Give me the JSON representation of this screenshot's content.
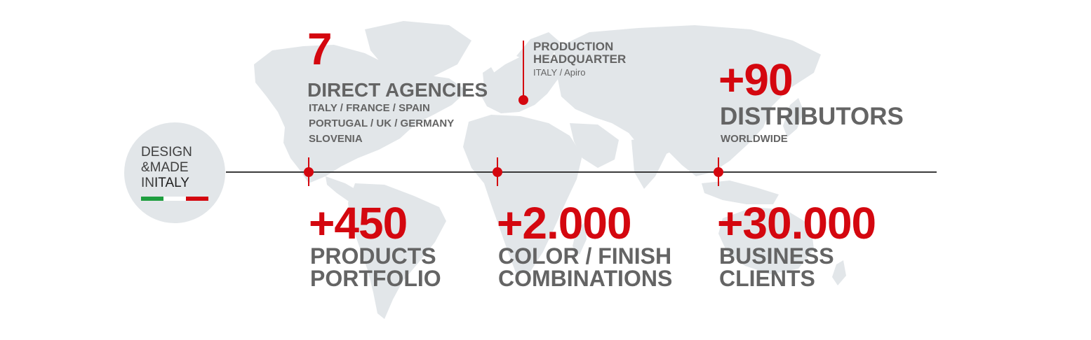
{
  "badge": {
    "line1": "DESIGN",
    "line2": "&MADE",
    "line3a": "IN",
    "line3b": "ITALY",
    "flag_colors": [
      "#1e9e3f",
      "#ffffff",
      "#d4070f"
    ]
  },
  "agencies": {
    "value": "7",
    "title": "DIRECT AGENCIES",
    "countries_line1": "ITALY / FRANCE / SPAIN",
    "countries_line2": "PORTUGAL / UK / GERMANY",
    "countries_line3": "SLOVENIA"
  },
  "headquarter": {
    "title_line1": "PRODUCTION",
    "title_line2": "HEADQUARTER",
    "location": "ITALY / Apiro"
  },
  "distributors": {
    "value": "+90",
    "title": "DISTRIBUTORS",
    "subtitle": "WORLDWIDE"
  },
  "products": {
    "value": "+450",
    "title_line1": "PRODUCTS",
    "title_line2": "PORTFOLIO"
  },
  "combinations": {
    "value": "+2.000",
    "title_line1": "COLOR / FINISH",
    "title_line2": "COMBINATIONS"
  },
  "clients": {
    "value": "+30.000",
    "title_line1": "BUSINESS",
    "title_line2": "CLIENTS"
  },
  "colors": {
    "accent": "#d4070f",
    "text": "#646464",
    "map": "#e2e6e9",
    "line": "#3a3a3a"
  }
}
